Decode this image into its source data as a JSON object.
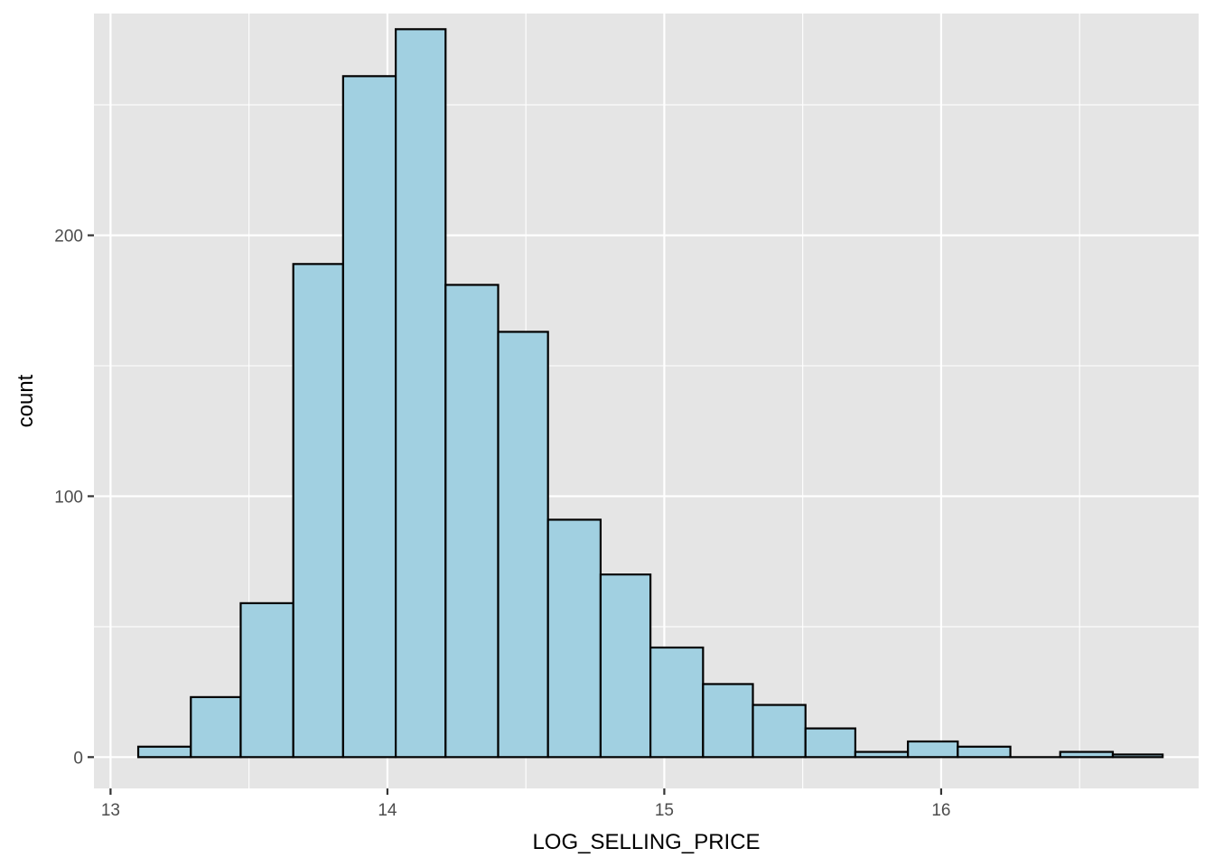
{
  "chart_data": {
    "type": "bar",
    "subtype": "histogram",
    "xlabel": "LOG_SELLING_PRICE",
    "ylabel": "count",
    "xlim": [
      12.94,
      16.93
    ],
    "ylim": [
      -12,
      285
    ],
    "x_ticks": [
      13,
      14,
      15,
      16
    ],
    "x_minor_ticks": [
      13.5,
      14.5,
      15.5,
      16.5
    ],
    "y_ticks": [
      0,
      100,
      200
    ],
    "y_minor_ticks": [
      50,
      150,
      250
    ],
    "grid": true,
    "legend": "none",
    "bins": [
      {
        "x0": 13.1,
        "x1": 13.29,
        "count": 4
      },
      {
        "x0": 13.29,
        "x1": 13.47,
        "count": 23
      },
      {
        "x0": 13.47,
        "x1": 13.66,
        "count": 59
      },
      {
        "x0": 13.66,
        "x1": 13.84,
        "count": 189
      },
      {
        "x0": 13.84,
        "x1": 14.03,
        "count": 261
      },
      {
        "x0": 14.03,
        "x1": 14.21,
        "count": 279
      },
      {
        "x0": 14.21,
        "x1": 14.4,
        "count": 181
      },
      {
        "x0": 14.4,
        "x1": 14.58,
        "count": 163
      },
      {
        "x0": 14.58,
        "x1": 14.77,
        "count": 91
      },
      {
        "x0": 14.77,
        "x1": 14.95,
        "count": 70
      },
      {
        "x0": 14.95,
        "x1": 15.14,
        "count": 42
      },
      {
        "x0": 15.14,
        "x1": 15.32,
        "count": 28
      },
      {
        "x0": 15.32,
        "x1": 15.51,
        "count": 20
      },
      {
        "x0": 15.51,
        "x1": 15.69,
        "count": 11
      },
      {
        "x0": 15.69,
        "x1": 15.88,
        "count": 2
      },
      {
        "x0": 15.88,
        "x1": 16.06,
        "count": 6
      },
      {
        "x0": 16.06,
        "x1": 16.25,
        "count": 4
      },
      {
        "x0": 16.25,
        "x1": 16.43,
        "count": 0
      },
      {
        "x0": 16.43,
        "x1": 16.62,
        "count": 2
      },
      {
        "x0": 16.62,
        "x1": 16.8,
        "count": 1
      }
    ],
    "colors": {
      "panel_background": "#e5e5e5",
      "grid": "#ffffff",
      "bar_fill": "#a1d0e1",
      "bar_stroke": "#000000",
      "tick_text": "#4d4d4d",
      "tick_mark": "#333333"
    }
  }
}
